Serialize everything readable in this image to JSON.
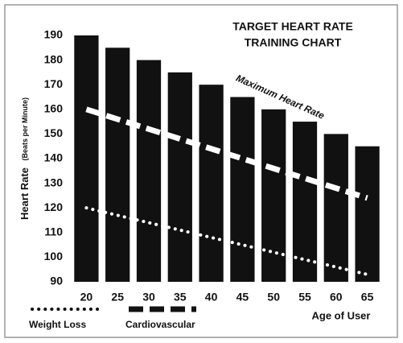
{
  "chart_data": {
    "type": "bar",
    "title": [
      "TARGET HEART RATE",
      "TRAINING CHART"
    ],
    "y_label": "Heart Rate",
    "y_label_sub": "(Beats per Minute)",
    "x_label": "Age of User",
    "categories": [
      "20",
      "25",
      "30",
      "35",
      "40",
      "45",
      "50",
      "55",
      "60",
      "65"
    ],
    "series": [
      {
        "name": "Maximum Heart Rate",
        "kind": "bar",
        "color": "#111111",
        "values": [
          190,
          185,
          180,
          175,
          170,
          165,
          160,
          155,
          150,
          145
        ]
      },
      {
        "name": "Weight Loss",
        "kind": "line",
        "dash": "dotted",
        "color": "#ffffff",
        "values": [
          120,
          117,
          114,
          111,
          108,
          105,
          102,
          99,
          96,
          93
        ]
      },
      {
        "name": "Cardiovascular",
        "kind": "line",
        "dash": "dashed",
        "color": "#ffffff",
        "values": [
          160,
          156,
          152,
          148,
          144,
          140,
          136,
          132,
          128,
          124
        ]
      }
    ],
    "ylim": [
      90,
      190
    ],
    "yticks": [
      90,
      100,
      110,
      120,
      130,
      140,
      150,
      160,
      170,
      180,
      190
    ],
    "grid": false
  }
}
